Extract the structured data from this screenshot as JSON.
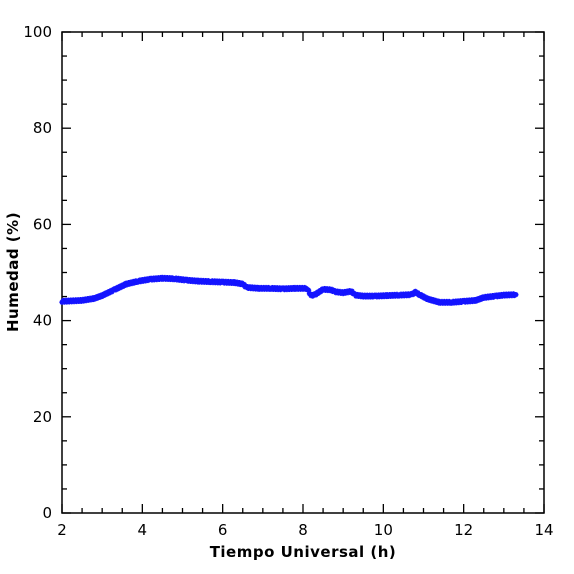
{
  "chart_data": {
    "type": "scatter",
    "title": "",
    "xlabel": "Tiempo Universal (h)",
    "ylabel": "Humedad (%)",
    "xlim": [
      2,
      14
    ],
    "ylim": [
      0,
      100
    ],
    "x_ticks": [
      "2",
      "4",
      "6",
      "8",
      "10",
      "12",
      "14"
    ],
    "y_ticks": [
      "0",
      "20",
      "40",
      "60",
      "80",
      "100"
    ],
    "grid": false,
    "marker": "star",
    "color": "#1414ff",
    "x": [
      2.0,
      2.5,
      2.8,
      3.0,
      3.3,
      3.6,
      3.9,
      4.2,
      4.5,
      4.8,
      5.1,
      5.4,
      5.7,
      6.0,
      6.3,
      6.5,
      6.6,
      6.9,
      7.2,
      7.5,
      7.8,
      8.1,
      8.2,
      8.3,
      8.5,
      8.7,
      8.8,
      9.0,
      9.2,
      9.3,
      9.5,
      9.8,
      10.1,
      10.4,
      10.7,
      10.8,
      10.9,
      11.1,
      11.4,
      11.7,
      12.0,
      12.3,
      12.5,
      12.8,
      13.0,
      13.3
    ],
    "y": [
      44.0,
      44.2,
      44.6,
      45.2,
      46.4,
      47.6,
      48.2,
      48.6,
      48.8,
      48.7,
      48.4,
      48.2,
      48.1,
      48.0,
      47.9,
      47.6,
      46.9,
      46.7,
      46.7,
      46.6,
      46.7,
      46.7,
      45.2,
      45.4,
      46.5,
      46.4,
      46.0,
      45.8,
      46.1,
      45.3,
      45.1,
      45.1,
      45.2,
      45.3,
      45.4,
      45.9,
      45.4,
      44.5,
      43.8,
      43.8,
      44.0,
      44.2,
      44.8,
      45.1,
      45.3,
      45.4
    ]
  }
}
